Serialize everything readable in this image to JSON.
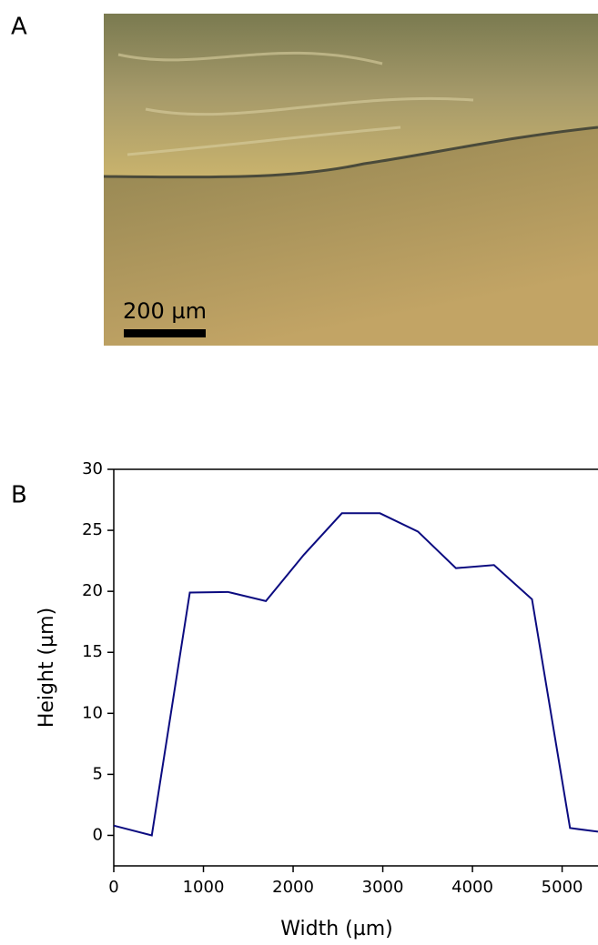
{
  "panel_a": {
    "label": "A",
    "scale_bar_label": "200 µm"
  },
  "panel_b": {
    "label": "B"
  },
  "chart_data": {
    "type": "line",
    "x_label": "Width (µm)",
    "y_label": "Height (µm)",
    "x": [
      0,
      424,
      848,
      1272,
      1696,
      2120,
      2544,
      2968,
      3392,
      3816,
      4240,
      4664,
      5088,
      5400
    ],
    "series": [
      {
        "color": "#0b0b80",
        "values": [
          0.8,
          0,
          19.9,
          19.95,
          19.2,
          23,
          26.4,
          26.4,
          24.9,
          21.9,
          22.15,
          19.35,
          0.6,
          0.3
        ]
      }
    ],
    "xlim": [
      0,
      5400
    ],
    "xticks": [
      0,
      1000,
      2000,
      3000,
      4000,
      5000
    ],
    "ylim": [
      -2.5,
      30
    ],
    "yticks": [
      0,
      5,
      10,
      15,
      20,
      25,
      30
    ]
  }
}
